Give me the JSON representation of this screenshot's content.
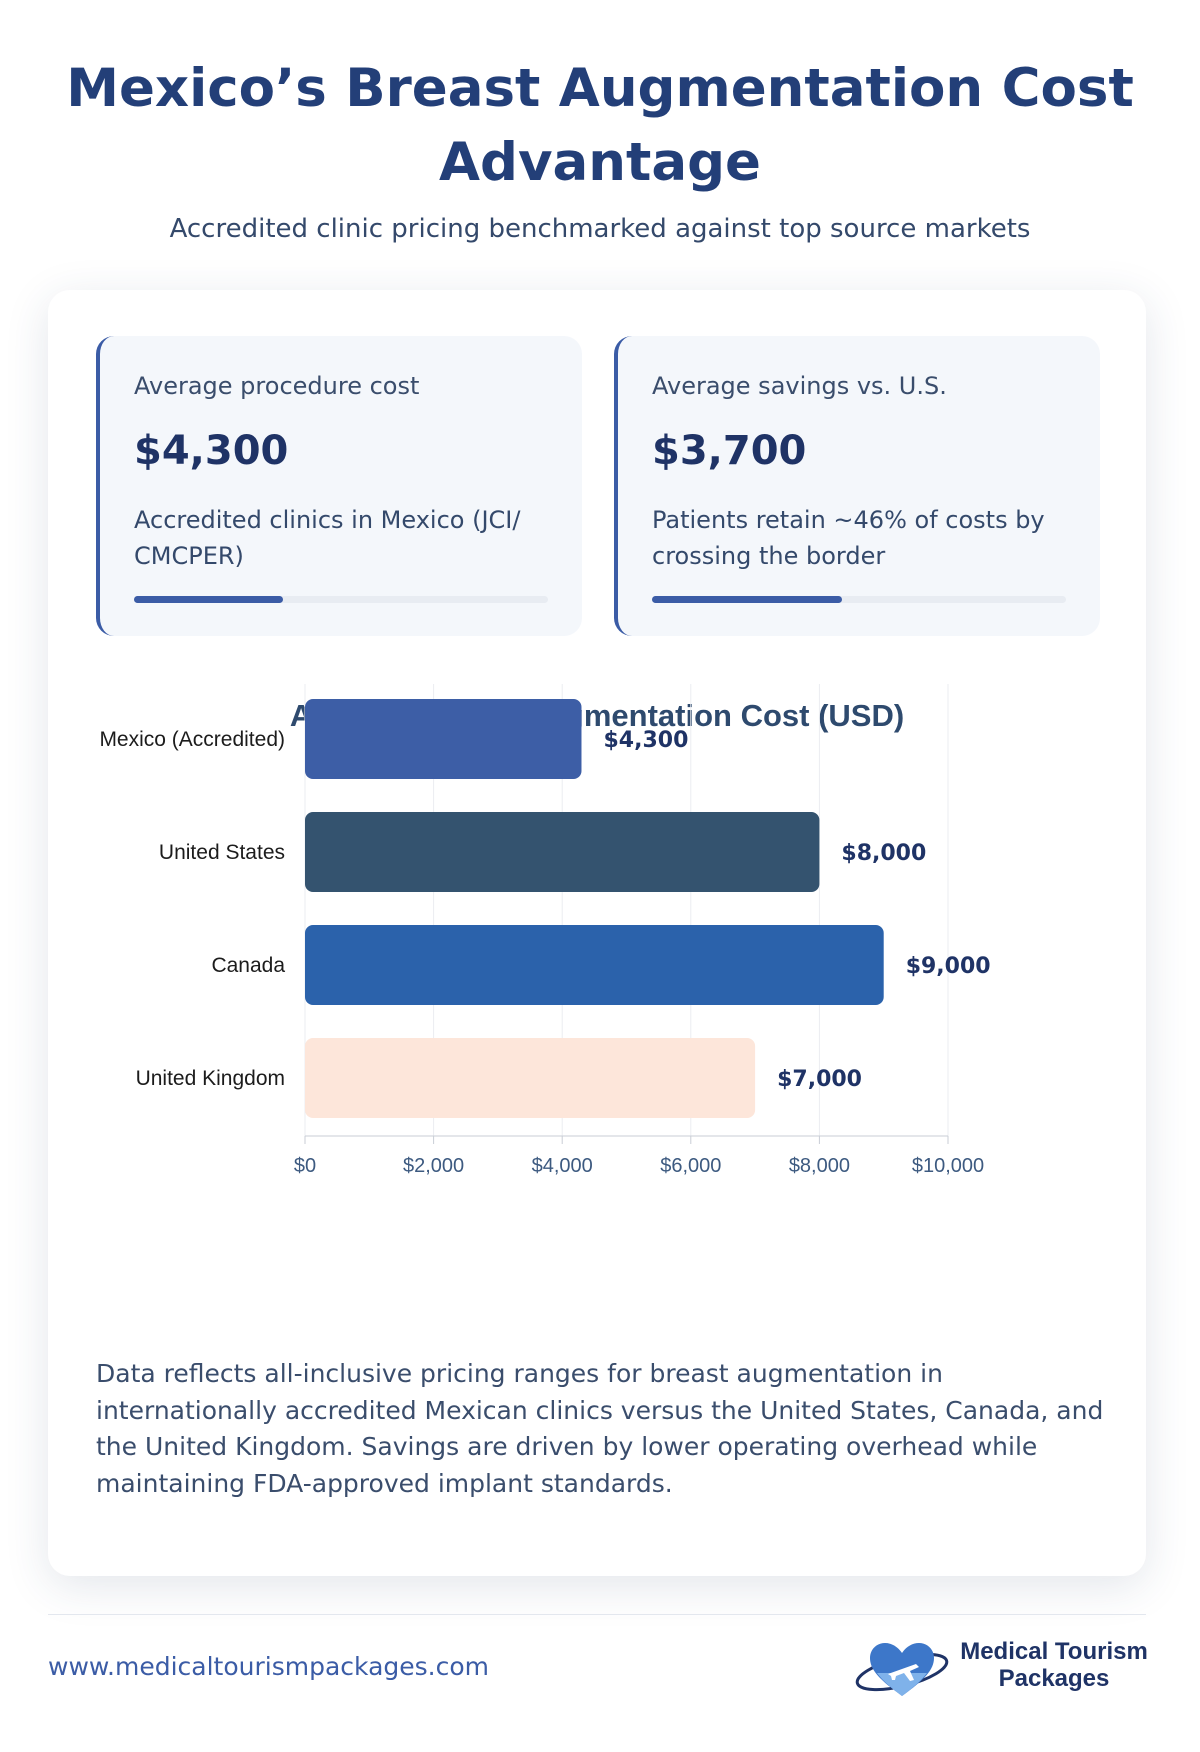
{
  "header": {
    "title": "Mexico’s Breast Augmentation Cost Advantage",
    "subtitle": "Accredited clinic pricing benchmarked against top source markets"
  },
  "stats": [
    {
      "label": "Average procedure cost",
      "value": "$4,300",
      "description": "Accredited clinics in Mexico (JCI/ CMCPER)",
      "progress": 0.36,
      "color": "#3b5ca6"
    },
    {
      "label": "Average savings vs. U.S.",
      "value": "$3,700",
      "description": "Patients retain ~46% of costs by crossing the border",
      "progress": 0.46,
      "color": "#3b5ca6"
    }
  ],
  "chart_data": {
    "type": "bar",
    "orientation": "horizontal",
    "title": "Average Breast Augmentation Cost (USD)",
    "categories": [
      "Mexico (Accredited)",
      "United States",
      "Canada",
      "United Kingdom"
    ],
    "values": [
      4300,
      8000,
      9000,
      7000
    ],
    "value_labels": [
      "$4,300",
      "$8,000",
      "$9,000",
      "$7,000"
    ],
    "colors": [
      "#3d5ea6",
      "#34536f",
      "#2b62ab",
      "#fde6da"
    ],
    "xlim": [
      0,
      10000
    ],
    "xticks": [
      0,
      2000,
      4000,
      6000,
      8000,
      10000
    ],
    "xtick_labels": [
      "$0",
      "$2,000",
      "$4,000",
      "$6,000",
      "$8,000",
      "$10,000"
    ],
    "grid": true,
    "xlabel": "",
    "ylabel": ""
  },
  "note": "Data reflects all-inclusive pricing ranges for breast augmentation in internationally accredited Mexican clinics versus the United States, Canada, and the United Kingdom. Savings are driven by lower operating overhead while maintaining FDA-approved implant standards.",
  "footer": {
    "url": "www.medicaltourismpackages.com",
    "logo_line1": "Medical Tourism",
    "logo_line2": "Packages"
  }
}
